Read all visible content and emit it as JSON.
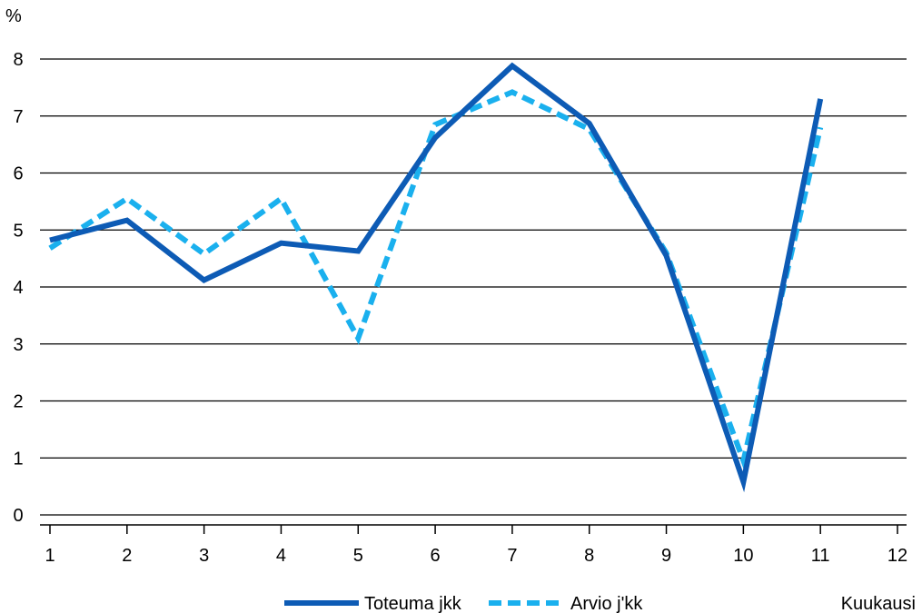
{
  "chart_data": {
    "type": "line",
    "x": [
      1,
      2,
      3,
      4,
      5,
      6,
      7,
      8,
      9,
      10,
      11,
      12
    ],
    "x_tick_labels": [
      "1",
      "2",
      "3",
      "4",
      "5",
      "6",
      "7",
      "8",
      "9",
      "10",
      "11",
      "12"
    ],
    "y_tick_labels": [
      "0",
      "1",
      "2",
      "3",
      "4",
      "5",
      "6",
      "7",
      "8"
    ],
    "ylabel": "%",
    "xlabel": "Kuukausi",
    "ylim": [
      0,
      8
    ],
    "xlim": [
      1,
      12
    ],
    "grid": "horizontal",
    "legend_position": "bottom",
    "series": [
      {
        "name": "Toteuma jkk",
        "style": "solid",
        "color": "#0d5bb5",
        "x": [
          1,
          2,
          3,
          4,
          5,
          6,
          7,
          8,
          9,
          10,
          11
        ],
        "values": [
          4.82,
          5.17,
          4.12,
          4.77,
          4.63,
          6.62,
          7.88,
          6.87,
          4.55,
          0.58,
          7.3
        ]
      },
      {
        "name": "Arvio j'kk",
        "style": "dashed",
        "color": "#1ab0ee",
        "x": [
          1,
          2,
          3,
          4,
          5,
          6,
          7,
          8,
          9,
          10,
          11
        ],
        "values": [
          4.68,
          5.55,
          4.58,
          5.55,
          3.1,
          6.85,
          7.42,
          6.77,
          4.6,
          0.95,
          6.8
        ]
      }
    ]
  }
}
